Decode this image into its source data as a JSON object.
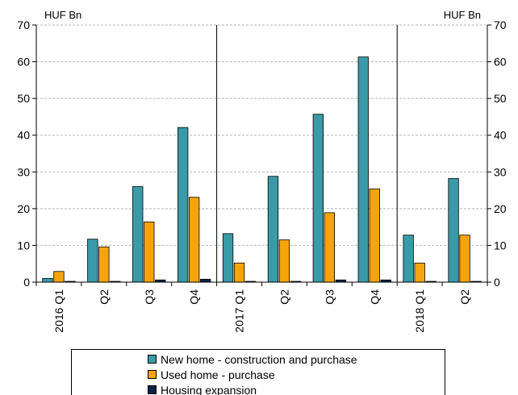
{
  "chart_data": {
    "type": "bar",
    "title": "",
    "y_unit_left": "HUF Bn",
    "y_unit_right": "HUF Bn",
    "ylim": [
      0,
      70
    ],
    "yticks": [
      0,
      10,
      20,
      30,
      40,
      50,
      60,
      70
    ],
    "grid": "horizontal dashed",
    "categories": [
      "2016 Q1",
      "Q2",
      "Q3",
      "Q4",
      "2017 Q1",
      "Q2",
      "Q3",
      "Q4",
      "2018 Q1",
      "Q2"
    ],
    "year_separators_after_index": [
      3,
      7
    ],
    "legend_position": "bottom",
    "series": [
      {
        "name": "New home - construction and purchase",
        "color": "#3a9aa8",
        "values": [
          1.0,
          11.7,
          26.0,
          42.1,
          13.2,
          28.8,
          45.7,
          61.3,
          12.8,
          28.2
        ]
      },
      {
        "name": "Used home - purchase",
        "color": "#f5a40c",
        "values": [
          2.9,
          9.6,
          16.4,
          23.1,
          5.2,
          11.5,
          18.9,
          25.4,
          5.2,
          12.8
        ]
      },
      {
        "name": "Housing expansion",
        "color": "#0d2346",
        "values": [
          0.1,
          0.2,
          0.6,
          0.8,
          0.1,
          0.2,
          0.6,
          0.6,
          0.1,
          0.2
        ]
      }
    ]
  }
}
